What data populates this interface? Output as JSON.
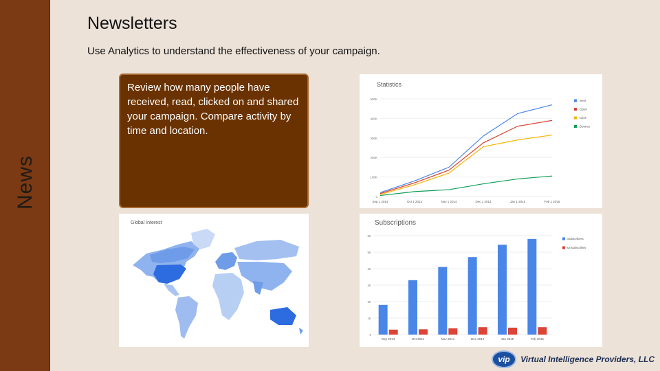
{
  "slide": {
    "sidebar_label": "News",
    "title": "Newsletters",
    "subtitle": "Use Analytics to understand the effectiveness of your campaign.",
    "callout": "Review how many people have received, read, clicked on and shared your campaign. Compare activity by time and location."
  },
  "footer": {
    "logo_mark": "vip",
    "company": "Virtual Intelligence Providers, LLC"
  },
  "statistics_chart": {
    "type": "line",
    "title": "Statistics",
    "categories": [
      "Sep 1 2014",
      "Oct 1 2014",
      "Nov 1 2014",
      "Dec 1 2014",
      "Jan 1 2015",
      "Feb 1 2015"
    ],
    "y_ticks": [
      "0",
      "100K",
      "200K",
      "300K",
      "400K",
      "500K"
    ],
    "ylim": [
      0,
      500
    ],
    "legend": [
      "Sent",
      "Open",
      "Click",
      "Bounce"
    ],
    "colors": [
      "#4a86e8",
      "#db4437",
      "#f4b400",
      "#0f9d58"
    ],
    "series": [
      {
        "name": "Sent",
        "values": [
          20,
          80,
          150,
          310,
          425,
          470
        ]
      },
      {
        "name": "Open",
        "values": [
          15,
          70,
          135,
          275,
          360,
          390
        ]
      },
      {
        "name": "Click",
        "values": [
          10,
          60,
          120,
          255,
          290,
          315
        ]
      },
      {
        "name": "Bounce",
        "values": [
          5,
          25,
          35,
          65,
          90,
          105
        ]
      }
    ]
  },
  "map_chart": {
    "title": "Global Interest"
  },
  "subscriptions_chart": {
    "type": "bar",
    "title": "Subscriptions",
    "categories": [
      "Sep 2014",
      "Oct 2014",
      "Nov 2014",
      "Dec 2014",
      "Jan 2015",
      "Feb 2015"
    ],
    "y_ticks": [
      "0",
      "1K",
      "2K",
      "3K",
      "4K",
      "5K",
      "6K"
    ],
    "ylim": [
      0,
      6
    ],
    "legend": [
      "Subscribers",
      "Unsubscribes"
    ],
    "colors": [
      "#4a86e8",
      "#db4437"
    ],
    "series": [
      {
        "name": "Subscribers",
        "values": [
          1.8,
          3.3,
          4.1,
          4.7,
          5.45,
          5.8
        ]
      },
      {
        "name": "Unsubscribes",
        "values": [
          0.3,
          0.32,
          0.38,
          0.45,
          0.42,
          0.45
        ]
      }
    ]
  }
}
